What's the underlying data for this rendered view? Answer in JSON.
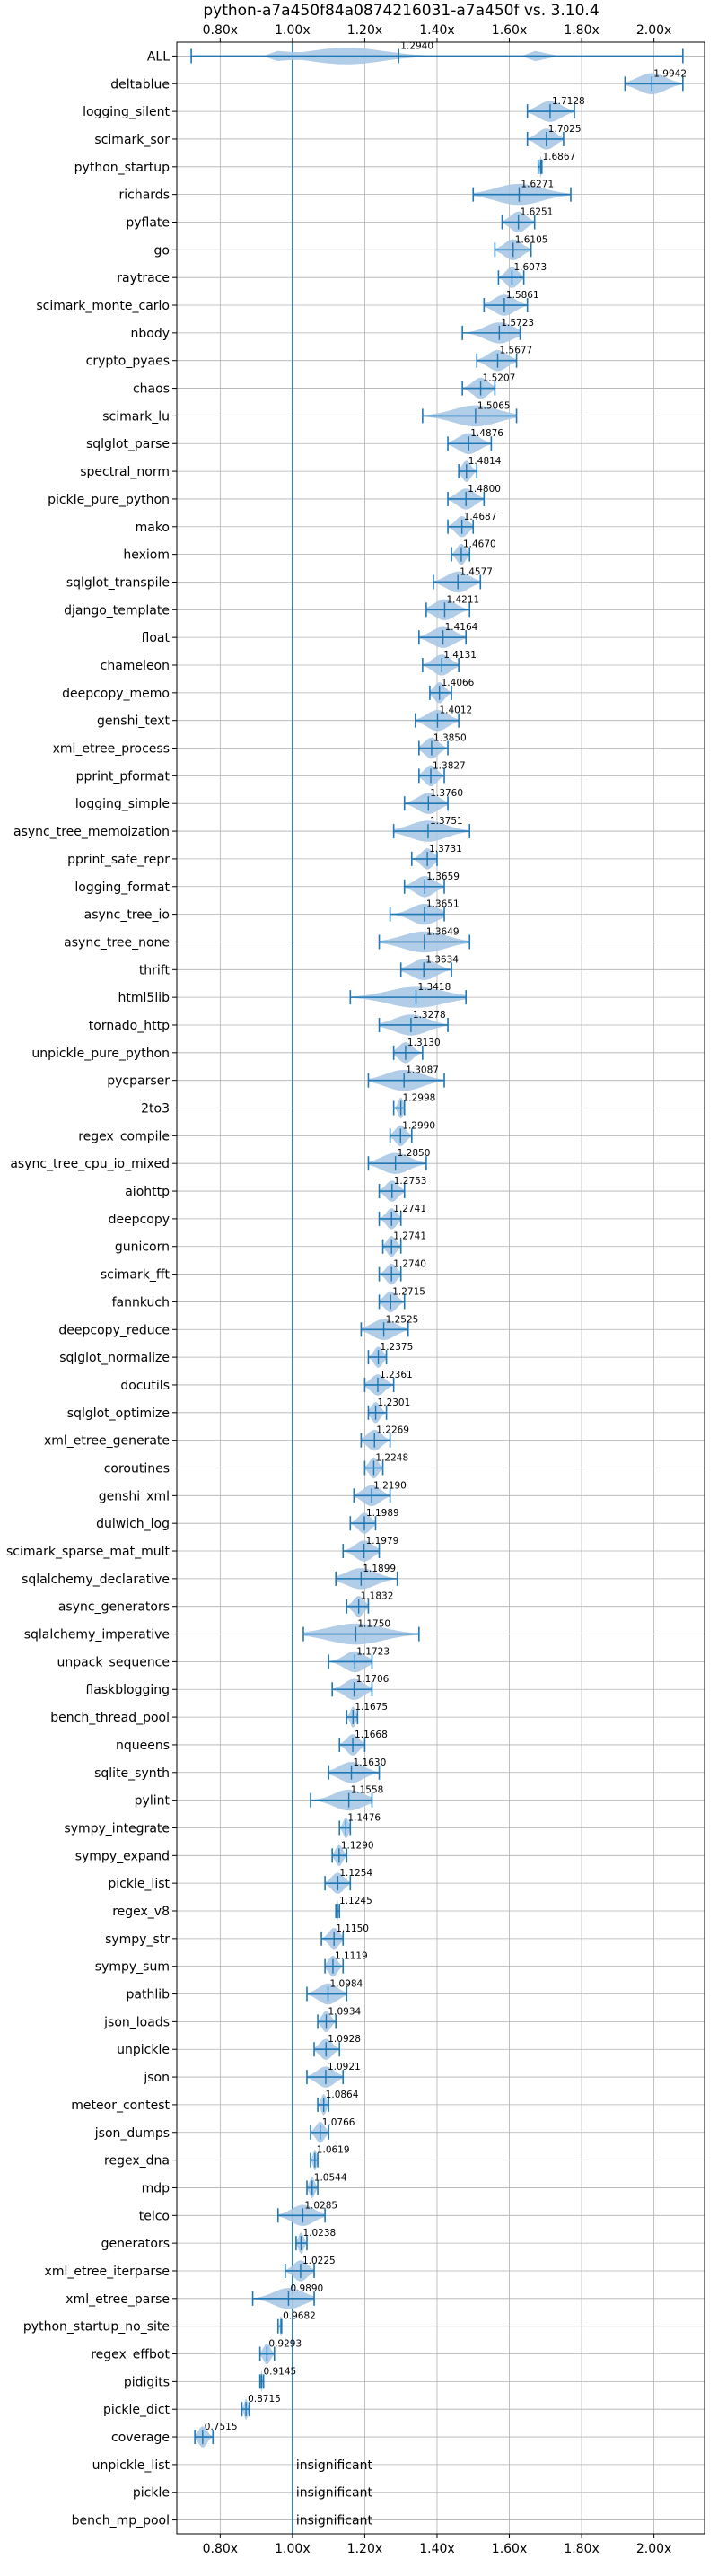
{
  "chart_data": {
    "type": "violin",
    "title": "python-a7a450f84a0874216031-a7a450f vs. 3.10.4",
    "xlim": [
      0.68,
      2.14
    ],
    "xticks": [
      0.8,
      1.0,
      1.2,
      1.4,
      1.6,
      1.8,
      2.0
    ],
    "xtick_labels": [
      "0.80x",
      "1.00x",
      "1.20x",
      "1.40x",
      "1.60x",
      "1.80x",
      "2.00x"
    ],
    "xtick_positions": [
      "top",
      "bottom"
    ],
    "baseline": 1.0,
    "grid": true,
    "color": "#1f77b4",
    "fill_color": "#aac8e4",
    "insignificant_text": "insignificant",
    "benchmarks": [
      {
        "name": "ALL",
        "value": 1.294,
        "label": "1.2940",
        "min": 0.72,
        "max": 2.08
      },
      {
        "name": "deltablue",
        "value": 1.9942,
        "label": "1.9942",
        "min": 1.92,
        "max": 2.08
      },
      {
        "name": "logging_silent",
        "value": 1.7128,
        "label": "1.7128",
        "min": 1.65,
        "max": 1.78
      },
      {
        "name": "scimark_sor",
        "value": 1.7025,
        "label": "1.7025",
        "min": 1.65,
        "max": 1.75
      },
      {
        "name": "python_startup",
        "value": 1.6867,
        "label": "1.6867",
        "min": 1.68,
        "max": 1.69
      },
      {
        "name": "richards",
        "value": 1.6271,
        "label": "1.6271",
        "min": 1.5,
        "max": 1.77
      },
      {
        "name": "pyflate",
        "value": 1.6251,
        "label": "1.6251",
        "min": 1.58,
        "max": 1.67
      },
      {
        "name": "go",
        "value": 1.6105,
        "label": "1.6105",
        "min": 1.56,
        "max": 1.66
      },
      {
        "name": "raytrace",
        "value": 1.6073,
        "label": "1.6073",
        "min": 1.57,
        "max": 1.64
      },
      {
        "name": "scimark_monte_carlo",
        "value": 1.5861,
        "label": "1.5861",
        "min": 1.53,
        "max": 1.65
      },
      {
        "name": "nbody",
        "value": 1.5723,
        "label": "1.5723",
        "min": 1.47,
        "max": 1.63
      },
      {
        "name": "crypto_pyaes",
        "value": 1.5677,
        "label": "1.5677",
        "min": 1.51,
        "max": 1.62
      },
      {
        "name": "chaos",
        "value": 1.5207,
        "label": "1.5207",
        "min": 1.47,
        "max": 1.56
      },
      {
        "name": "scimark_lu",
        "value": 1.5065,
        "label": "1.5065",
        "min": 1.36,
        "max": 1.62
      },
      {
        "name": "sqlglot_parse",
        "value": 1.4876,
        "label": "1.4876",
        "min": 1.43,
        "max": 1.55
      },
      {
        "name": "spectral_norm",
        "value": 1.4814,
        "label": "1.4814",
        "min": 1.46,
        "max": 1.51
      },
      {
        "name": "pickle_pure_python",
        "value": 1.48,
        "label": "1.4800",
        "min": 1.43,
        "max": 1.53
      },
      {
        "name": "mako",
        "value": 1.4687,
        "label": "1.4687",
        "min": 1.43,
        "max": 1.5
      },
      {
        "name": "hexiom",
        "value": 1.467,
        "label": "1.4670",
        "min": 1.44,
        "max": 1.49
      },
      {
        "name": "sqlglot_transpile",
        "value": 1.4577,
        "label": "1.4577",
        "min": 1.39,
        "max": 1.52
      },
      {
        "name": "django_template",
        "value": 1.4211,
        "label": "1.4211",
        "min": 1.37,
        "max": 1.49
      },
      {
        "name": "float",
        "value": 1.4164,
        "label": "1.4164",
        "min": 1.35,
        "max": 1.48
      },
      {
        "name": "chameleon",
        "value": 1.4131,
        "label": "1.4131",
        "min": 1.36,
        "max": 1.46
      },
      {
        "name": "deepcopy_memo",
        "value": 1.4066,
        "label": "1.4066",
        "min": 1.38,
        "max": 1.44
      },
      {
        "name": "genshi_text",
        "value": 1.4012,
        "label": "1.4012",
        "min": 1.34,
        "max": 1.46
      },
      {
        "name": "xml_etree_process",
        "value": 1.385,
        "label": "1.3850",
        "min": 1.35,
        "max": 1.43
      },
      {
        "name": "pprint_pformat",
        "value": 1.3827,
        "label": "1.3827",
        "min": 1.35,
        "max": 1.42
      },
      {
        "name": "logging_simple",
        "value": 1.376,
        "label": "1.3760",
        "min": 1.31,
        "max": 1.43
      },
      {
        "name": "async_tree_memoization",
        "value": 1.3751,
        "label": "1.3751",
        "min": 1.28,
        "max": 1.49
      },
      {
        "name": "pprint_safe_repr",
        "value": 1.3731,
        "label": "1.3731",
        "min": 1.33,
        "max": 1.4
      },
      {
        "name": "logging_format",
        "value": 1.3659,
        "label": "1.3659",
        "min": 1.31,
        "max": 1.42
      },
      {
        "name": "async_tree_io",
        "value": 1.3651,
        "label": "1.3651",
        "min": 1.27,
        "max": 1.42
      },
      {
        "name": "async_tree_none",
        "value": 1.3649,
        "label": "1.3649",
        "min": 1.24,
        "max": 1.49
      },
      {
        "name": "thrift",
        "value": 1.3634,
        "label": "1.3634",
        "min": 1.3,
        "max": 1.44
      },
      {
        "name": "html5lib",
        "value": 1.3418,
        "label": "1.3418",
        "min": 1.16,
        "max": 1.48
      },
      {
        "name": "tornado_http",
        "value": 1.3278,
        "label": "1.3278",
        "min": 1.24,
        "max": 1.43
      },
      {
        "name": "unpickle_pure_python",
        "value": 1.313,
        "label": "1.3130",
        "min": 1.28,
        "max": 1.36
      },
      {
        "name": "pycparser",
        "value": 1.3087,
        "label": "1.3087",
        "min": 1.21,
        "max": 1.42
      },
      {
        "name": "2to3",
        "value": 1.2998,
        "label": "1.2998",
        "min": 1.28,
        "max": 1.31
      },
      {
        "name": "regex_compile",
        "value": 1.299,
        "label": "1.2990",
        "min": 1.27,
        "max": 1.33
      },
      {
        "name": "async_tree_cpu_io_mixed",
        "value": 1.285,
        "label": "1.2850",
        "min": 1.21,
        "max": 1.37
      },
      {
        "name": "aiohttp",
        "value": 1.2753,
        "label": "1.2753",
        "min": 1.24,
        "max": 1.31
      },
      {
        "name": "deepcopy",
        "value": 1.2741,
        "label": "1.2741",
        "min": 1.24,
        "max": 1.3
      },
      {
        "name": "gunicorn",
        "value": 1.2741,
        "label": "1.2741",
        "min": 1.25,
        "max": 1.3
      },
      {
        "name": "scimark_fft",
        "value": 1.274,
        "label": "1.2740",
        "min": 1.24,
        "max": 1.3
      },
      {
        "name": "fannkuch",
        "value": 1.2715,
        "label": "1.2715",
        "min": 1.24,
        "max": 1.31
      },
      {
        "name": "deepcopy_reduce",
        "value": 1.2525,
        "label": "1.2525",
        "min": 1.19,
        "max": 1.32
      },
      {
        "name": "sqlglot_normalize",
        "value": 1.2375,
        "label": "1.2375",
        "min": 1.21,
        "max": 1.26
      },
      {
        "name": "docutils",
        "value": 1.2361,
        "label": "1.2361",
        "min": 1.2,
        "max": 1.28
      },
      {
        "name": "sqlglot_optimize",
        "value": 1.2301,
        "label": "1.2301",
        "min": 1.21,
        "max": 1.26
      },
      {
        "name": "xml_etree_generate",
        "value": 1.2269,
        "label": "1.2269",
        "min": 1.19,
        "max": 1.27
      },
      {
        "name": "coroutines",
        "value": 1.2248,
        "label": "1.2248",
        "min": 1.2,
        "max": 1.25
      },
      {
        "name": "genshi_xml",
        "value": 1.219,
        "label": "1.2190",
        "min": 1.17,
        "max": 1.27
      },
      {
        "name": "dulwich_log",
        "value": 1.1989,
        "label": "1.1989",
        "min": 1.16,
        "max": 1.23
      },
      {
        "name": "scimark_sparse_mat_mult",
        "value": 1.1979,
        "label": "1.1979",
        "min": 1.14,
        "max": 1.24
      },
      {
        "name": "sqlalchemy_declarative",
        "value": 1.1899,
        "label": "1.1899",
        "min": 1.12,
        "max": 1.29
      },
      {
        "name": "async_generators",
        "value": 1.1832,
        "label": "1.1832",
        "min": 1.15,
        "max": 1.21
      },
      {
        "name": "sqlalchemy_imperative",
        "value": 1.175,
        "label": "1.1750",
        "min": 1.03,
        "max": 1.35
      },
      {
        "name": "unpack_sequence",
        "value": 1.1723,
        "label": "1.1723",
        "min": 1.1,
        "max": 1.22
      },
      {
        "name": "flaskblogging",
        "value": 1.1706,
        "label": "1.1706",
        "min": 1.11,
        "max": 1.22
      },
      {
        "name": "bench_thread_pool",
        "value": 1.1675,
        "label": "1.1675",
        "min": 1.15,
        "max": 1.18
      },
      {
        "name": "nqueens",
        "value": 1.1668,
        "label": "1.1668",
        "min": 1.13,
        "max": 1.2
      },
      {
        "name": "sqlite_synth",
        "value": 1.163,
        "label": "1.1630",
        "min": 1.1,
        "max": 1.24
      },
      {
        "name": "pylint",
        "value": 1.1558,
        "label": "1.1558",
        "min": 1.05,
        "max": 1.22
      },
      {
        "name": "sympy_integrate",
        "value": 1.1476,
        "label": "1.1476",
        "min": 1.13,
        "max": 1.16
      },
      {
        "name": "sympy_expand",
        "value": 1.129,
        "label": "1.1290",
        "min": 1.11,
        "max": 1.15
      },
      {
        "name": "pickle_list",
        "value": 1.1254,
        "label": "1.1254",
        "min": 1.09,
        "max": 1.16
      },
      {
        "name": "regex_v8",
        "value": 1.1245,
        "label": "1.1245",
        "min": 1.12,
        "max": 1.13
      },
      {
        "name": "sympy_str",
        "value": 1.115,
        "label": "1.1150",
        "min": 1.08,
        "max": 1.14
      },
      {
        "name": "sympy_sum",
        "value": 1.1119,
        "label": "1.1119",
        "min": 1.09,
        "max": 1.14
      },
      {
        "name": "pathlib",
        "value": 1.0984,
        "label": "1.0984",
        "min": 1.04,
        "max": 1.15
      },
      {
        "name": "json_loads",
        "value": 1.0934,
        "label": "1.0934",
        "min": 1.07,
        "max": 1.12
      },
      {
        "name": "unpickle",
        "value": 1.0928,
        "label": "1.0928",
        "min": 1.06,
        "max": 1.13
      },
      {
        "name": "json",
        "value": 1.0921,
        "label": "1.0921",
        "min": 1.04,
        "max": 1.14
      },
      {
        "name": "meteor_contest",
        "value": 1.0864,
        "label": "1.0864",
        "min": 1.07,
        "max": 1.1
      },
      {
        "name": "json_dumps",
        "value": 1.0766,
        "label": "1.0766",
        "min": 1.05,
        "max": 1.1
      },
      {
        "name": "regex_dna",
        "value": 1.0619,
        "label": "1.0619",
        "min": 1.05,
        "max": 1.07
      },
      {
        "name": "mdp",
        "value": 1.0544,
        "label": "1.0544",
        "min": 1.04,
        "max": 1.07
      },
      {
        "name": "telco",
        "value": 1.0285,
        "label": "1.0285",
        "min": 0.96,
        "max": 1.09
      },
      {
        "name": "generators",
        "value": 1.0238,
        "label": "1.0238",
        "min": 1.01,
        "max": 1.04
      },
      {
        "name": "xml_etree_iterparse",
        "value": 1.0225,
        "label": "1.0225",
        "min": 0.98,
        "max": 1.06
      },
      {
        "name": "xml_etree_parse",
        "value": 0.989,
        "label": "0.9890",
        "min": 0.89,
        "max": 1.06
      },
      {
        "name": "python_startup_no_site",
        "value": 0.9682,
        "label": "0.9682",
        "min": 0.96,
        "max": 0.97
      },
      {
        "name": "regex_effbot",
        "value": 0.9293,
        "label": "0.9293",
        "min": 0.91,
        "max": 0.95
      },
      {
        "name": "pidigits",
        "value": 0.9145,
        "label": "0.9145",
        "min": 0.91,
        "max": 0.92
      },
      {
        "name": "pickle_dict",
        "value": 0.8715,
        "label": "0.8715",
        "min": 0.86,
        "max": 0.88
      },
      {
        "name": "coverage",
        "value": 0.7515,
        "label": "0.7515",
        "min": 0.73,
        "max": 0.78
      },
      {
        "name": "unpickle_list",
        "insignificant": true
      },
      {
        "name": "pickle",
        "insignificant": true
      },
      {
        "name": "bench_mp_pool",
        "insignificant": true
      }
    ]
  }
}
